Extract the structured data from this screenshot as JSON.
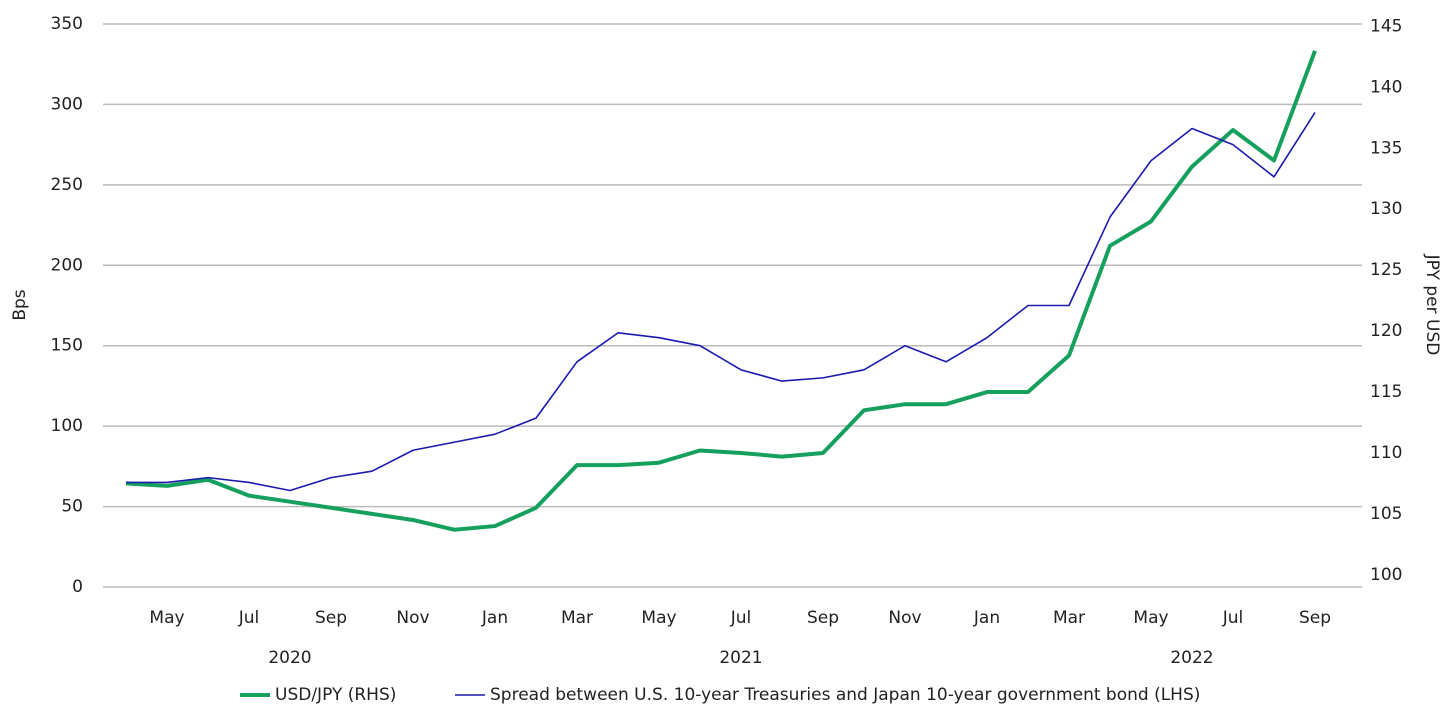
{
  "chart_data": {
    "type": "line",
    "x": [
      "2020-04",
      "2020-05",
      "2020-06",
      "2020-07",
      "2020-08",
      "2020-09",
      "2020-10",
      "2020-11",
      "2020-12",
      "2021-01",
      "2021-02",
      "2021-03",
      "2021-04",
      "2021-05",
      "2021-06",
      "2021-07",
      "2021-08",
      "2021-09",
      "2021-10",
      "2021-11",
      "2021-12",
      "2022-01",
      "2022-02",
      "2022-03",
      "2022-04",
      "2022-05",
      "2022-06",
      "2022-07",
      "2022-08",
      "2022-09"
    ],
    "series": [
      {
        "name": "USD/JPY (RHS)",
        "color": "#16a05e",
        "axis": "y2",
        "values": [
          107.5,
          107.3,
          107.8,
          106.5,
          106,
          105.5,
          105,
          104.5,
          103.7,
          104,
          105.5,
          109,
          109,
          109.2,
          110.2,
          110,
          109.7,
          110,
          113.5,
          114,
          114,
          115,
          115,
          118,
          127,
          129,
          133.5,
          136.5,
          134,
          143
        ]
      },
      {
        "name": "Spread between U.S. 10-year Treasuries and Japan 10-year government bond (LHS)",
        "color": "#1a1ab0",
        "values": [
          65,
          65,
          68,
          65,
          60,
          68,
          72,
          85,
          90,
          95,
          105,
          140,
          158,
          155,
          150,
          135,
          128,
          130,
          135,
          150,
          140,
          155,
          175,
          175,
          230,
          265,
          285,
          275,
          255,
          295
        ]
      }
    ],
    "ylabel": "Bps",
    "y2label": "JPY per USD",
    "ylim": [
      0,
      350
    ],
    "yticks": [
      0,
      50,
      100,
      150,
      200,
      250,
      300,
      350
    ],
    "y2lim": [
      99,
      145.2
    ],
    "y2ticks": [
      100,
      105,
      110,
      115,
      120,
      125,
      130,
      135,
      140,
      145
    ],
    "xticks": [
      {
        "value": "2020-05",
        "label": "May"
      },
      {
        "value": "2020-07",
        "label": "Jul"
      },
      {
        "value": "2020-09",
        "label": "Sep"
      },
      {
        "value": "2020-11",
        "label": "Nov"
      },
      {
        "value": "2021-01",
        "label": "Jan"
      },
      {
        "value": "2021-03",
        "label": "Mar"
      },
      {
        "value": "2021-05",
        "label": "May"
      },
      {
        "value": "2021-07",
        "label": "Jul"
      },
      {
        "value": "2021-09",
        "label": "Sep"
      },
      {
        "value": "2021-11",
        "label": "Nov"
      },
      {
        "value": "2022-01",
        "label": "Jan"
      },
      {
        "value": "2022-03",
        "label": "Mar"
      },
      {
        "value": "2022-05",
        "label": "May"
      },
      {
        "value": "2022-07",
        "label": "Jul"
      },
      {
        "value": "2022-09",
        "label": "Sep"
      }
    ],
    "year_labels": [
      {
        "value": "2020-08",
        "label": "2020"
      },
      {
        "value": "2021-07",
        "label": "2021"
      },
      {
        "value": "2022-06",
        "label": "2022"
      }
    ],
    "grid": true,
    "legend": "bottom"
  }
}
